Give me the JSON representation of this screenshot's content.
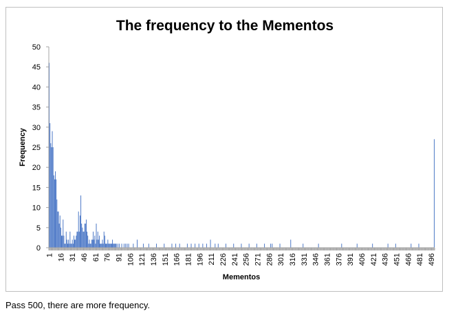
{
  "chart_data": {
    "type": "bar",
    "title": "The frequency to the Mementos",
    "xlabel": "Mementos",
    "ylabel": "Frequency",
    "ylim": [
      0,
      50
    ],
    "yticks": [
      0,
      5,
      10,
      15,
      20,
      25,
      30,
      35,
      40,
      45,
      50
    ],
    "x_tick_labels": [
      "1",
      "16",
      "31",
      "46",
      "61",
      "76",
      "91",
      "106",
      "121",
      "136",
      "151",
      "166",
      "181",
      "196",
      "211",
      "226",
      "241",
      "256",
      "271",
      "286",
      "301",
      "316",
      "331",
      "346",
      "361",
      "376",
      "391",
      "406",
      "421",
      "436",
      "451",
      "466",
      "481",
      "496"
    ],
    "legend": "none",
    "grid": false,
    "color": "#4472c4",
    "x": [
      1,
      2,
      3,
      4,
      5,
      6,
      7,
      8,
      9,
      10,
      11,
      12,
      13,
      14,
      15,
      16,
      17,
      18,
      19,
      20,
      21,
      22,
      23,
      24,
      25,
      26,
      27,
      28,
      29,
      30,
      31,
      32,
      33,
      34,
      35,
      36,
      37,
      38,
      39,
      40,
      41,
      42,
      43,
      44,
      45,
      46,
      47,
      48,
      49,
      50,
      51,
      52,
      53,
      54,
      55,
      56,
      57,
      58,
      59,
      60,
      61,
      62,
      63,
      64,
      65,
      66,
      67,
      68,
      69,
      70,
      71,
      72,
      73,
      74,
      75,
      76,
      77,
      78,
      79,
      80,
      81,
      82,
      83,
      84,
      85,
      86,
      87,
      88,
      90,
      92,
      95,
      98,
      100,
      102,
      104,
      110,
      115,
      123,
      130,
      140,
      150,
      160,
      165,
      170,
      180,
      185,
      190,
      195,
      200,
      205,
      210,
      216,
      220,
      230,
      240,
      250,
      260,
      270,
      280,
      288,
      290,
      300,
      314,
      330,
      350,
      380,
      400,
      420,
      440,
      450,
      470,
      480,
      500
    ],
    "values": [
      46,
      31,
      26,
      25,
      29,
      25,
      18,
      17,
      19,
      17,
      12,
      9,
      9,
      6,
      8,
      5,
      3,
      3,
      7,
      3,
      1,
      1,
      4,
      2,
      1,
      2,
      1,
      4,
      1,
      1,
      2,
      1,
      3,
      2,
      2,
      3,
      4,
      4,
      9,
      4,
      8,
      13,
      6,
      5,
      4,
      4,
      6,
      6,
      7,
      4,
      3,
      1,
      2,
      1,
      1,
      2,
      2,
      4,
      2,
      3,
      1,
      6,
      2,
      4,
      2,
      3,
      1,
      1,
      1,
      2,
      1,
      4,
      3,
      1,
      1,
      1,
      2,
      1,
      1,
      1,
      1,
      1,
      2,
      1,
      1,
      1,
      1,
      1,
      1,
      1,
      1,
      1,
      1,
      1,
      1,
      1,
      2,
      1,
      1,
      1,
      1,
      1,
      1,
      1,
      1,
      1,
      1,
      1,
      1,
      1,
      2,
      1,
      1,
      1,
      1,
      1,
      1,
      1,
      1,
      1,
      1,
      1,
      2,
      1,
      1,
      1,
      1,
      1,
      1,
      1,
      1,
      1,
      27
    ]
  },
  "footnote": "Pass 500, there are more frequency."
}
